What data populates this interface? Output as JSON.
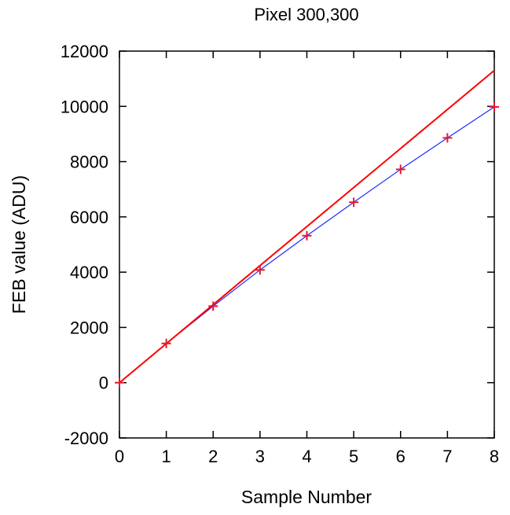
{
  "chart_data": {
    "type": "scatter",
    "title": "Pixel 300,300",
    "xlabel": "Sample Number",
    "ylabel": "FEB value (ADU)",
    "xlim": [
      0,
      8
    ],
    "ylim": [
      -2000,
      12000
    ],
    "x_ticks": [
      "0",
      "1",
      "2",
      "3",
      "4",
      "5",
      "6",
      "7",
      "8"
    ],
    "y_ticks": [
      "-2000",
      "0",
      "2000",
      "4000",
      "6000",
      "8000",
      "10000",
      "12000"
    ],
    "grid": false,
    "legend": false,
    "series": [
      {
        "kind": "points",
        "marker": "plus",
        "color": "#e8192c",
        "x": [
          0,
          1,
          2,
          3,
          4,
          5,
          6,
          7,
          8
        ],
        "y": [
          0,
          1420,
          2770,
          4080,
          5320,
          6530,
          7720,
          8860,
          9980
        ]
      },
      {
        "kind": "line",
        "color": "#1f2bff",
        "x": [
          0,
          1,
          2,
          3,
          4,
          5,
          6,
          7,
          8
        ],
        "y": [
          0,
          1420,
          2770,
          4080,
          5320,
          6530,
          7720,
          8860,
          9980
        ]
      },
      {
        "kind": "line",
        "color": "#ff0000",
        "x": [
          0,
          8
        ],
        "y": [
          0,
          11300
        ]
      }
    ]
  }
}
